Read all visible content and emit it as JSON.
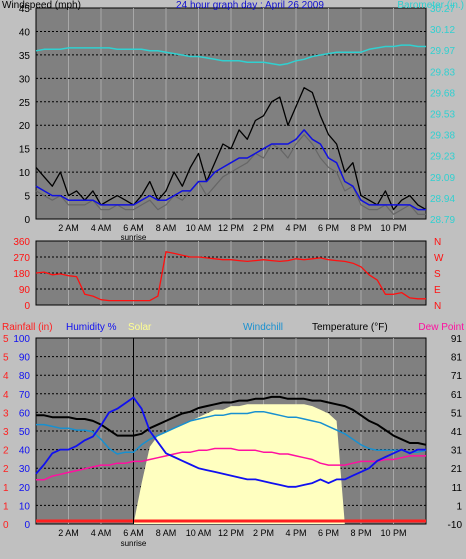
{
  "header": {
    "wind_label": "Windspeed (mph)",
    "title": "24 hour graph day : April 26 2009",
    "baro_label": "Barometer (in.)"
  },
  "colors": {
    "bg": "#c0c0c0",
    "plot": "#808080",
    "grid": "#a8a8a8",
    "wind": "#000000",
    "gust": "#666666",
    "avg": "#1010e0",
    "baro": "#30d0d0",
    "dir": "#ff1010",
    "humidity": "#1010f0",
    "solar": "#ffffc0",
    "windchill": "#1890d0",
    "temp": "#000000",
    "dewpoint": "#ff10a0",
    "rain": "#ff2020",
    "sunrise_line": "#000000"
  },
  "x_ticks": [
    "2 AM",
    "4 AM",
    "6 AM",
    "8 AM",
    "10 AM",
    "12 PM",
    "2 PM",
    "4 PM",
    "6 PM",
    "8 PM",
    "10 PM"
  ],
  "sunrise_label": "sunrise",
  "chart_data": [
    {
      "type": "line",
      "name": "wind",
      "ylabel": "Windspeed (mph)",
      "ylim": [
        0,
        45
      ],
      "y2label": "Barometer (in.)",
      "y2lim": [
        28.79,
        30.27
      ],
      "left_ticks": [
        "0",
        "5",
        "10",
        "15",
        "20",
        "25",
        "30",
        "35",
        "40",
        "45"
      ],
      "right_ticks": [
        "28.79",
        "28.94",
        "29.09",
        "29.23",
        "29.38",
        "29.53",
        "29.68",
        "29.83",
        "29.97",
        "30.12",
        "30.27"
      ],
      "x_hours": [
        0,
        0.5,
        1,
        1.5,
        2,
        2.5,
        3,
        3.5,
        4,
        4.5,
        5,
        5.5,
        6,
        6.5,
        7,
        7.5,
        8,
        8.5,
        9,
        9.5,
        10,
        10.5,
        11,
        11.5,
        12,
        12.5,
        13,
        13.5,
        14,
        14.5,
        15,
        15.5,
        16,
        16.5,
        17,
        17.5,
        18,
        18.5,
        19,
        19.5,
        20,
        20.5,
        21,
        21.5,
        22,
        22.5,
        23,
        23.5,
        24
      ],
      "series": [
        {
          "values": [
            11,
            9,
            7,
            10,
            5,
            6,
            4,
            6,
            3,
            4,
            5,
            4,
            3,
            5,
            8,
            4,
            6,
            10,
            7,
            11,
            14,
            8,
            12,
            16,
            15,
            19,
            17,
            21,
            22,
            25,
            26,
            20,
            24,
            28,
            27,
            22,
            18,
            16,
            10,
            12,
            5,
            4,
            3,
            6,
            2,
            4,
            5,
            3,
            2
          ]
        },
        {
          "values": [
            6,
            5,
            4,
            5,
            3,
            3,
            3,
            4,
            2,
            2,
            3,
            2,
            2,
            3,
            4,
            2,
            3,
            5,
            4,
            6,
            8,
            5,
            7,
            9,
            10,
            11,
            12,
            14,
            13,
            16,
            15,
            13,
            16,
            18,
            16,
            13,
            11,
            10,
            6,
            7,
            3,
            2,
            2,
            3,
            1,
            2,
            3,
            1,
            1
          ]
        },
        {
          "values": [
            7,
            6,
            5,
            5,
            4,
            4,
            4,
            4,
            3,
            3,
            3,
            3,
            3,
            4,
            5,
            4,
            4,
            5,
            6,
            6,
            8,
            8,
            10,
            11,
            12,
            13,
            13,
            14,
            15,
            16,
            16,
            16,
            17,
            19,
            17,
            16,
            13,
            12,
            8,
            7,
            4,
            3,
            3,
            3,
            3,
            3,
            3,
            2,
            2
          ]
        },
        {
          "values": [
            29.97,
            29.98,
            29.98,
            29.98,
            29.99,
            29.99,
            29.99,
            29.99,
            29.99,
            29.99,
            29.98,
            29.98,
            29.98,
            29.98,
            29.97,
            29.97,
            29.96,
            29.95,
            29.94,
            29.93,
            29.93,
            29.92,
            29.91,
            29.9,
            29.9,
            29.9,
            29.89,
            29.89,
            29.89,
            29.88,
            29.87,
            29.88,
            29.9,
            29.91,
            29.93,
            29.94,
            29.95,
            29.96,
            29.96,
            29.96,
            29.96,
            29.98,
            29.99,
            30,
            30,
            30.01,
            30.01,
            30,
            30
          ]
        }
      ]
    },
    {
      "type": "line",
      "name": "wind_direction",
      "ylim": [
        0,
        360
      ],
      "left_ticks": [
        "0",
        "90",
        "180",
        "270",
        "360"
      ],
      "right_labels": [
        "N",
        "W",
        "S",
        "E",
        "N"
      ],
      "x_hours": [
        0,
        0.5,
        1,
        1.5,
        2,
        2.5,
        3,
        3.5,
        4,
        4.5,
        5,
        5.5,
        6,
        6.5,
        7,
        7.5,
        8,
        8.5,
        9,
        9.5,
        10,
        10.5,
        11,
        11.5,
        12,
        12.5,
        13,
        13.5,
        14,
        14.5,
        15,
        15.5,
        16,
        16.5,
        17,
        17.5,
        18,
        18.5,
        19,
        19.5,
        20,
        20.5,
        21,
        21.5,
        22,
        22.5,
        23,
        23.5,
        24
      ],
      "series": [
        {
          "values": [
            180,
            185,
            170,
            175,
            165,
            160,
            60,
            50,
            30,
            25,
            25,
            25,
            25,
            25,
            25,
            50,
            300,
            290,
            280,
            270,
            270,
            265,
            260,
            255,
            255,
            250,
            245,
            250,
            255,
            250,
            245,
            250,
            260,
            255,
            260,
            265,
            255,
            250,
            245,
            235,
            215,
            170,
            140,
            60,
            60,
            70,
            40,
            35,
            35
          ]
        }
      ]
    },
    {
      "type": "line",
      "name": "weather",
      "left_labels": [
        "Rainfall (in)",
        "Humidity %",
        "Solar"
      ],
      "right_labels": [
        "Windchill",
        "Temperature (°F)",
        "Dew Point"
      ],
      "ylim": [
        0,
        100
      ],
      "y2lim": [
        -10,
        91
      ],
      "left_ticks_rain": [
        "0",
        "1",
        "1",
        "2",
        "2",
        "3",
        "3",
        "4",
        "4",
        "5",
        "5"
      ],
      "left_ticks_hum": [
        "0",
        "10",
        "20",
        "30",
        "40",
        "50",
        "60",
        "70",
        "80",
        "90",
        "100"
      ],
      "right_ticks": [
        "-10",
        "1",
        "11",
        "21",
        "31",
        "41",
        "51",
        "61",
        "71",
        "81",
        "91"
      ],
      "x_hours": [
        0,
        0.5,
        1,
        1.5,
        2,
        2.5,
        3,
        3.5,
        4,
        4.5,
        5,
        5.5,
        6,
        6.5,
        7,
        7.5,
        8,
        8.5,
        9,
        9.5,
        10,
        10.5,
        11,
        11.5,
        12,
        12.5,
        13,
        13.5,
        14,
        14.5,
        15,
        15.5,
        16,
        16.5,
        17,
        17.5,
        18,
        18.5,
        19,
        19.5,
        20,
        20.5,
        21,
        21.5,
        22,
        22.5,
        23,
        23.5,
        24
      ],
      "series": [
        {
          "values": [
            27,
            32,
            38,
            40,
            40,
            42,
            45,
            47,
            53,
            60,
            62,
            65,
            68,
            62,
            50,
            44,
            38,
            36,
            34,
            32,
            30,
            29,
            28,
            27,
            26,
            25,
            24,
            24,
            23,
            22,
            21,
            20,
            20,
            21,
            22,
            24,
            22,
            24,
            24,
            26,
            28,
            30,
            34,
            36,
            38,
            40,
            38,
            40,
            40
          ]
        },
        {
          "values": [
            0,
            0,
            0,
            0,
            0,
            0,
            0,
            0,
            0,
            0,
            0,
            0,
            0,
            12,
            32,
            38,
            40,
            42,
            44,
            46,
            48,
            50,
            52,
            52,
            54,
            54,
            55,
            55,
            55,
            55,
            55,
            55,
            55,
            55,
            54,
            52,
            50,
            46,
            0,
            0,
            0,
            0,
            0,
            0,
            0,
            0,
            0,
            0,
            0
          ]
        },
        {
          "values": [
            44,
            44,
            43,
            42,
            42,
            41,
            41,
            40,
            36,
            31,
            28,
            29,
            29,
            33,
            36,
            38,
            40,
            42,
            44,
            46,
            47,
            48,
            49,
            49,
            50,
            50,
            50,
            51,
            51,
            50,
            49,
            48,
            48,
            47,
            46,
            45,
            43,
            41,
            39,
            36,
            33,
            31,
            30,
            30,
            30,
            30,
            29,
            29,
            30
          ]
        },
        {
          "values": [
            49,
            49,
            48,
            48,
            48,
            47,
            47,
            46,
            44,
            41,
            38,
            38,
            38,
            39,
            42,
            44,
            46,
            48,
            50,
            51,
            53,
            54,
            55,
            56,
            56,
            57,
            57,
            58,
            58,
            59,
            59,
            58,
            58,
            58,
            57,
            57,
            56,
            55,
            54,
            52,
            49,
            46,
            44,
            41,
            38,
            36,
            34,
            34,
            33
          ]
        },
        {
          "values": [
            14,
            14,
            16,
            17,
            18,
            19,
            20,
            21,
            22,
            22,
            23,
            23,
            24,
            24,
            25,
            26,
            27,
            28,
            29,
            29,
            30,
            30,
            31,
            31,
            31,
            30,
            30,
            30,
            29,
            29,
            28,
            28,
            27,
            26,
            25,
            23,
            22,
            22,
            22,
            23,
            24,
            24,
            24,
            25,
            25,
            26,
            27,
            27,
            27
          ]
        },
        {
          "values": [
            0,
            0,
            0,
            0,
            0,
            0,
            0,
            0,
            0,
            0,
            0,
            0,
            0,
            0,
            0,
            0,
            0,
            0,
            0,
            0,
            0,
            0,
            0,
            0,
            0,
            0,
            0,
            0,
            0,
            0,
            0,
            0,
            0,
            0,
            0,
            0,
            0,
            0,
            0,
            0,
            0,
            0,
            0,
            0,
            0,
            0,
            0,
            0,
            0
          ]
        }
      ]
    }
  ]
}
